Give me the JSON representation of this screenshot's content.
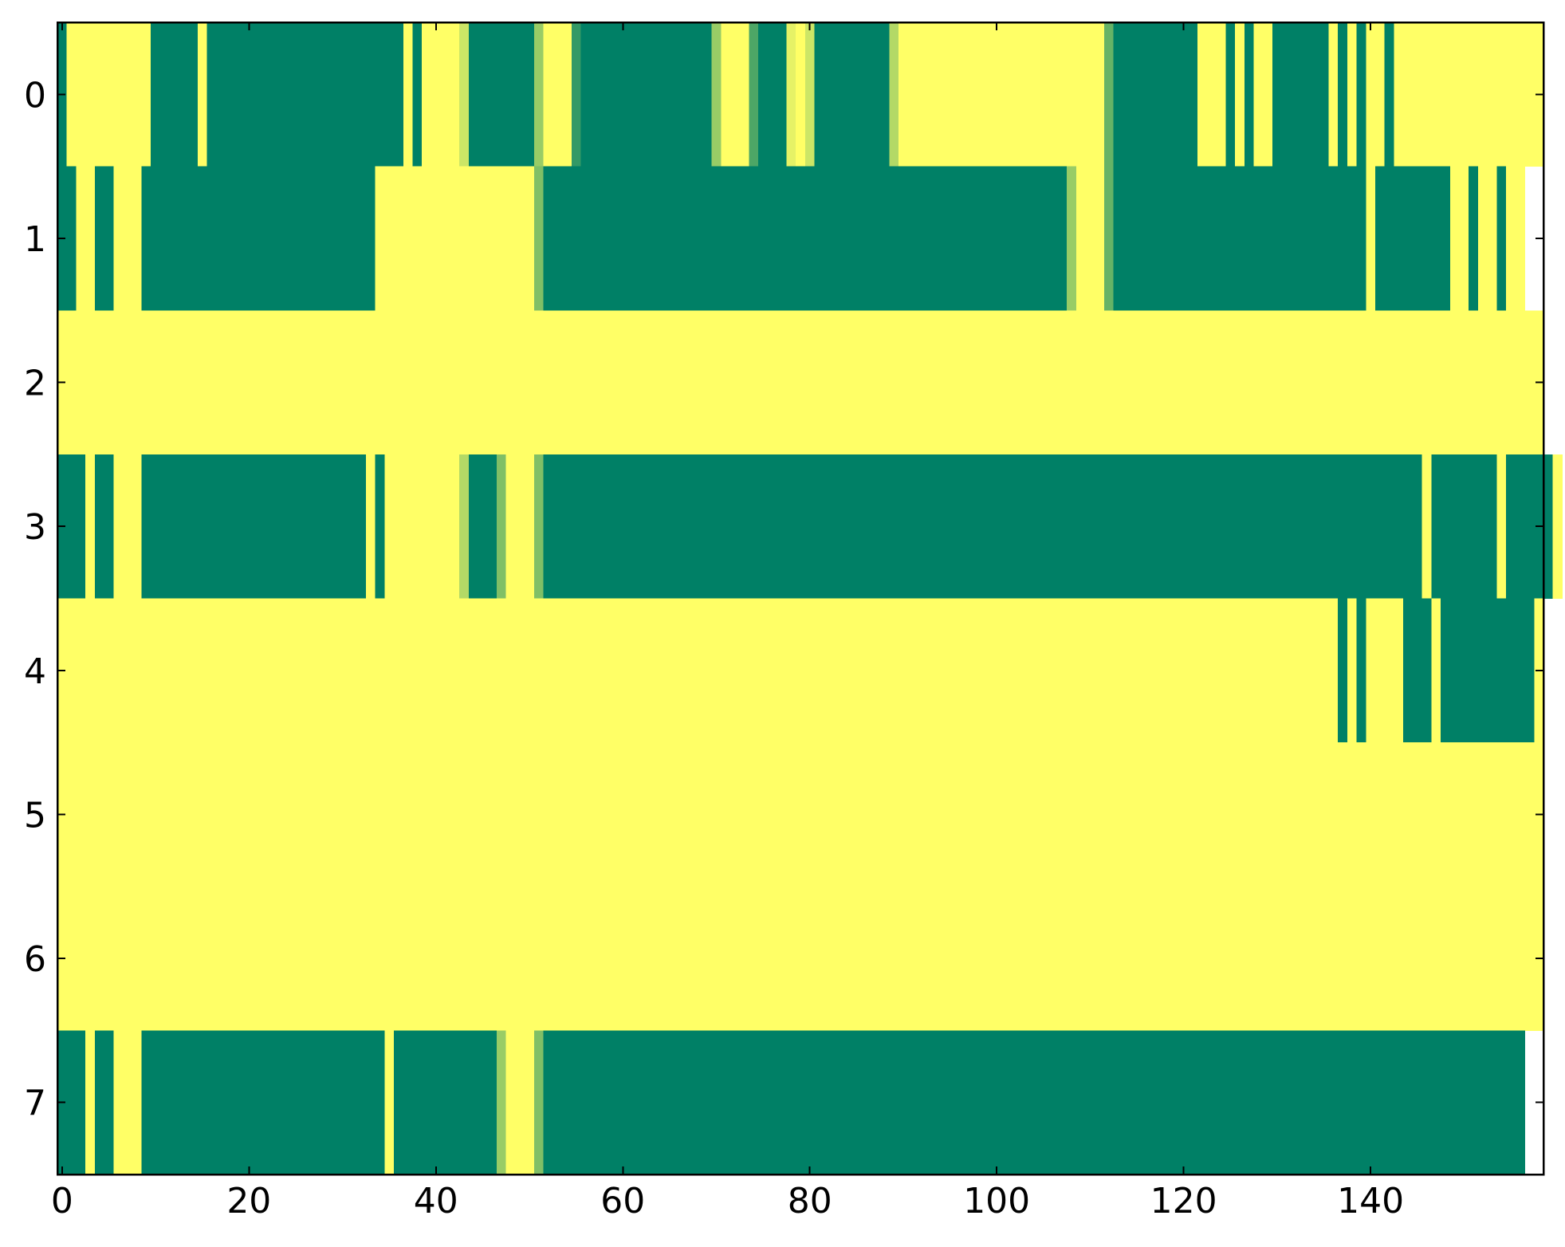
{
  "chart_data": {
    "type": "heatmap",
    "colormap": "summer",
    "clim": [
      0,
      1
    ],
    "xlim": [
      -0.5,
      158.5
    ],
    "ylim": [
      7.5,
      -0.5
    ],
    "xticks": [
      0,
      20,
      40,
      60,
      80,
      100,
      120,
      140
    ],
    "yticks": [
      0,
      1,
      2,
      3,
      4,
      5,
      6,
      7
    ],
    "z": [
      [
        0,
        1,
        1,
        1,
        1,
        1,
        1,
        1,
        1,
        1,
        0,
        0,
        0,
        0,
        0,
        1,
        0,
        0,
        0,
        0,
        0,
        0,
        0,
        0,
        0,
        0,
        0,
        0,
        0,
        0,
        0,
        0,
        0,
        0,
        0,
        0,
        0,
        1,
        0,
        1,
        1,
        1,
        1,
        0.8,
        0,
        0,
        0,
        0,
        0,
        0,
        0,
        0.6,
        1,
        1,
        1,
        0.2,
        0,
        0,
        0,
        0,
        0,
        0,
        0,
        0,
        0,
        0,
        0,
        0,
        0,
        0,
        0.6,
        1,
        1,
        1,
        0.3,
        0,
        0,
        0,
        0.9,
        1,
        0.8,
        0,
        0,
        0,
        0,
        0,
        0,
        0,
        0,
        0.7,
        1,
        1,
        1,
        1,
        1,
        1,
        1,
        1,
        1,
        1,
        1,
        1,
        1,
        1,
        1,
        1,
        1,
        1,
        1,
        1,
        1,
        1,
        0.4,
        0,
        0,
        0,
        0,
        0,
        0,
        0,
        0,
        0,
        1,
        1,
        1,
        0,
        1,
        0,
        1,
        1,
        0,
        0,
        0,
        0,
        0,
        0,
        1,
        0,
        1,
        0,
        1,
        1,
        0,
        1,
        1,
        1,
        1,
        1,
        1,
        1,
        1,
        1,
        1,
        1,
        1,
        1,
        1,
        1,
        1
      ],
      [
        0,
        0,
        1,
        1,
        0,
        0,
        1,
        1,
        1,
        0,
        0,
        0,
        0,
        0,
        0,
        0,
        0,
        0,
        0,
        0,
        0,
        0,
        0,
        0,
        0,
        0,
        0,
        0,
        0,
        0,
        0,
        0,
        0,
        0,
        1,
        1,
        1,
        1,
        1,
        1,
        1,
        1,
        1,
        1,
        1,
        1,
        1,
        1,
        1,
        1,
        1,
        0.5,
        0,
        0,
        0,
        0,
        0,
        0,
        0,
        0,
        0,
        0,
        0,
        0,
        0,
        0,
        0,
        0,
        0,
        0,
        0,
        0,
        0,
        0,
        0,
        0,
        0,
        0,
        0,
        0,
        0,
        0,
        0,
        0,
        0,
        0,
        0,
        0,
        0,
        0,
        0,
        0,
        0,
        0,
        0,
        0,
        0,
        0,
        0,
        0,
        0,
        0,
        0,
        0,
        0,
        0,
        0,
        0,
        0.6,
        1,
        1,
        1,
        0.4,
        0,
        0,
        0,
        0,
        0,
        0,
        0,
        0,
        0,
        0,
        0,
        0,
        0,
        0,
        0,
        0,
        0,
        0,
        0,
        0,
        0,
        0,
        0,
        0,
        0,
        0,
        0,
        1,
        0,
        0,
        0,
        0,
        0,
        0,
        0,
        0,
        1,
        1,
        0,
        1,
        1,
        0,
        1,
        1
      ],
      [
        1,
        1,
        1,
        1,
        1,
        1,
        1,
        1,
        1,
        1,
        1,
        1,
        1,
        1,
        1,
        1,
        1,
        1,
        1,
        1,
        1,
        1,
        1,
        1,
        1,
        1,
        1,
        1,
        1,
        1,
        1,
        1,
        1,
        1,
        1,
        1,
        1,
        1,
        1,
        1,
        1,
        1,
        1,
        1,
        1,
        1,
        1,
        1,
        1,
        1,
        1,
        1,
        1,
        1,
        1,
        1,
        1,
        1,
        1,
        1,
        1,
        1,
        1,
        1,
        1,
        1,
        1,
        1,
        1,
        1,
        1,
        1,
        1,
        1,
        1,
        1,
        1,
        1,
        1,
        1,
        1,
        1,
        1,
        1,
        1,
        1,
        1,
        1,
        1,
        1,
        1,
        1,
        1,
        1,
        1,
        1,
        1,
        1,
        1,
        1,
        1,
        1,
        1,
        1,
        1,
        1,
        1,
        1,
        1,
        1,
        1,
        1,
        1,
        1,
        1,
        1,
        1,
        1,
        1,
        1,
        1,
        1,
        1,
        1,
        1,
        1,
        1,
        1,
        1,
        1,
        1,
        1,
        1,
        1,
        1,
        1,
        1,
        1,
        1,
        1,
        1,
        1,
        1,
        1,
        1,
        1,
        1,
        1,
        1,
        1,
        1,
        1,
        1,
        1,
        1,
        1,
        1,
        1,
        1
      ],
      [
        0,
        0,
        0,
        1,
        0,
        0,
        1,
        1,
        1,
        0,
        0,
        0,
        0,
        0,
        0,
        0,
        0,
        0,
        0,
        0,
        0,
        0,
        0,
        0,
        0,
        0,
        0,
        0,
        0,
        0,
        0,
        0,
        0,
        1,
        0,
        1,
        1,
        1,
        1,
        1,
        1,
        1,
        1,
        0.7,
        0,
        0,
        0,
        0.5,
        1,
        1,
        1,
        0.5,
        0,
        0,
        0,
        0,
        0,
        0,
        0,
        0,
        0,
        0,
        0,
        0,
        0,
        0,
        0,
        0,
        0,
        0,
        0,
        0,
        0,
        0,
        0,
        0,
        0,
        0,
        0,
        0,
        0,
        0,
        0,
        0,
        0,
        0,
        0,
        0,
        0,
        0,
        0,
        0,
        0,
        0,
        0,
        0,
        0,
        0,
        0,
        0,
        0,
        0,
        0,
        0,
        0,
        0,
        0,
        0,
        0,
        0,
        0,
        0,
        0,
        0,
        0,
        0,
        0,
        0,
        0,
        0,
        0,
        0,
        0,
        0,
        0,
        0,
        0,
        0,
        0,
        0,
        0,
        0,
        0,
        0,
        0,
        0,
        0,
        0,
        0,
        0,
        0,
        0,
        0,
        0,
        0,
        0,
        1,
        0,
        0,
        0,
        0,
        0,
        0,
        0,
        1,
        0,
        0,
        0,
        0,
        0,
        1
      ],
      [
        1,
        1,
        1,
        1,
        1,
        1,
        1,
        1,
        1,
        1,
        1,
        1,
        1,
        1,
        1,
        1,
        1,
        1,
        1,
        1,
        1,
        1,
        1,
        1,
        1,
        1,
        1,
        1,
        1,
        1,
        1,
        1,
        1,
        1,
        1,
        1,
        1,
        1,
        1,
        1,
        1,
        1,
        1,
        1,
        1,
        1,
        1,
        1,
        1,
        1,
        1,
        1,
        1,
        1,
        1,
        1,
        1,
        1,
        1,
        1,
        1,
        1,
        1,
        1,
        1,
        1,
        1,
        1,
        1,
        1,
        1,
        1,
        1,
        1,
        1,
        1,
        1,
        1,
        1,
        1,
        1,
        1,
        1,
        1,
        1,
        1,
        1,
        1,
        1,
        1,
        1,
        1,
        1,
        1,
        1,
        1,
        1,
        1,
        1,
        1,
        1,
        1,
        1,
        1,
        1,
        1,
        1,
        1,
        1,
        1,
        1,
        1,
        1,
        1,
        1,
        1,
        1,
        1,
        1,
        1,
        1,
        1,
        1,
        1,
        1,
        1,
        1,
        1,
        1,
        1,
        1,
        1,
        1,
        1,
        1,
        1,
        1,
        0,
        1,
        0,
        1,
        1,
        1,
        1,
        0,
        0,
        0,
        1,
        0,
        0,
        0,
        0,
        0,
        0,
        0,
        0,
        0,
        0,
        1
      ],
      [
        1,
        1,
        1,
        1,
        1,
        1,
        1,
        1,
        1,
        1,
        1,
        1,
        1,
        1,
        1,
        1,
        1,
        1,
        1,
        1,
        1,
        1,
        1,
        1,
        1,
        1,
        1,
        1,
        1,
        1,
        1,
        1,
        1,
        1,
        1,
        1,
        1,
        1,
        1,
        1,
        1,
        1,
        1,
        1,
        1,
        1,
        1,
        1,
        1,
        1,
        1,
        1,
        1,
        1,
        1,
        1,
        1,
        1,
        1,
        1,
        1,
        1,
        1,
        1,
        1,
        1,
        1,
        1,
        1,
        1,
        1,
        1,
        1,
        1,
        1,
        1,
        1,
        1,
        1,
        1,
        1,
        1,
        1,
        1,
        1,
        1,
        1,
        1,
        1,
        1,
        1,
        1,
        1,
        1,
        1,
        1,
        1,
        1,
        1,
        1,
        1,
        1,
        1,
        1,
        1,
        1,
        1,
        1,
        1,
        1,
        1,
        1,
        1,
        1,
        1,
        1,
        1,
        1,
        1,
        1,
        1,
        1,
        1,
        1,
        1,
        1,
        1,
        1,
        1,
        1,
        1,
        1,
        1,
        1,
        1,
        1,
        1,
        1,
        1,
        1,
        1,
        1,
        1,
        1,
        1,
        1,
        1,
        1,
        1,
        1,
        1,
        1,
        1,
        1,
        1,
        1,
        1,
        1,
        1
      ],
      [
        1,
        1,
        1,
        1,
        1,
        1,
        1,
        1,
        1,
        1,
        1,
        1,
        1,
        1,
        1,
        1,
        1,
        1,
        1,
        1,
        1,
        1,
        1,
        1,
        1,
        1,
        1,
        1,
        1,
        1,
        1,
        1,
        1,
        1,
        1,
        1,
        1,
        1,
        1,
        1,
        1,
        1,
        1,
        1,
        1,
        1,
        1,
        1,
        1,
        1,
        1,
        1,
        1,
        1,
        1,
        1,
        1,
        1,
        1,
        1,
        1,
        1,
        1,
        1,
        1,
        1,
        1,
        1,
        1,
        1,
        1,
        1,
        1,
        1,
        1,
        1,
        1,
        1,
        1,
        1,
        1,
        1,
        1,
        1,
        1,
        1,
        1,
        1,
        1,
        1,
        1,
        1,
        1,
        1,
        1,
        1,
        1,
        1,
        1,
        1,
        1,
        1,
        1,
        1,
        1,
        1,
        1,
        1,
        1,
        1,
        1,
        1,
        1,
        1,
        1,
        1,
        1,
        1,
        1,
        1,
        1,
        1,
        1,
        1,
        1,
        1,
        1,
        1,
        1,
        1,
        1,
        1,
        1,
        1,
        1,
        1,
        1,
        1,
        1,
        1,
        1,
        1,
        1,
        1,
        1,
        1,
        1,
        1,
        1,
        1,
        1,
        1,
        1,
        1,
        1,
        1,
        1,
        1,
        1
      ],
      [
        0,
        0,
        0,
        1,
        0,
        0,
        1,
        1,
        1,
        0,
        0,
        0,
        0,
        0,
        0,
        0,
        0,
        0,
        0,
        0,
        0,
        0,
        0,
        0,
        0,
        0,
        0,
        0,
        0,
        0,
        0,
        0,
        0,
        0,
        0,
        1,
        0,
        0,
        0,
        0,
        0,
        0,
        0,
        0,
        0,
        0,
        0,
        0.6,
        1,
        1,
        1,
        0.5,
        0,
        0,
        0,
        0,
        0,
        0,
        0,
        0,
        0,
        0,
        0,
        0,
        0,
        0,
        0,
        0,
        0,
        0,
        0,
        0,
        0,
        0,
        0,
        0,
        0,
        0,
        0,
        0,
        0,
        0,
        0,
        0,
        0,
        0,
        0,
        0,
        0,
        0,
        0,
        0,
        0,
        0,
        0,
        0,
        0,
        0,
        0,
        0,
        0,
        0,
        0,
        0,
        0,
        0,
        0,
        0,
        0,
        0,
        0,
        0,
        0,
        0,
        0,
        0,
        0,
        0,
        0,
        0,
        0,
        0,
        0,
        0,
        0,
        0,
        0,
        0,
        0,
        0,
        0,
        0,
        0,
        0,
        0,
        0,
        0,
        0,
        0,
        0,
        0,
        0,
        0,
        0,
        0,
        0,
        0,
        0,
        0,
        0,
        0,
        0,
        0,
        0,
        0,
        0,
        0
      ]
    ]
  }
}
